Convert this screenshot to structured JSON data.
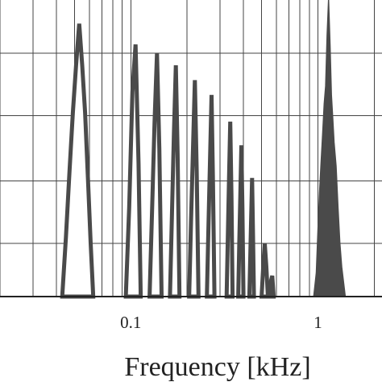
{
  "chart_data": {
    "type": "area",
    "xlabel": "Frequency  [kHz]",
    "x_scale": "log",
    "x_range": [
      0.02,
      2.2
    ],
    "y_range": [
      0,
      1
    ],
    "y_ticks": [
      0.18,
      0.39,
      0.61,
      0.82
    ],
    "grid": true,
    "x_tick_labels": [
      {
        "value": 0.1,
        "label": "0.1"
      },
      {
        "value": 1,
        "label": "1"
      }
    ],
    "series_color": "#4a4a4a",
    "series": [
      {
        "style": "outline",
        "x": [
          0.043,
          0.045,
          0.047,
          0.049,
          0.051,
          0.053,
          0.055,
          0.057,
          0.059,
          0.061,
          0.063
        ],
        "y": [
          0,
          0.2,
          0.42,
          0.62,
          0.78,
          0.92,
          0.78,
          0.62,
          0.4,
          0.18,
          0
        ]
      },
      {
        "style": "outline",
        "x": [
          0.094,
          0.098,
          0.102,
          0.106,
          0.11,
          0.113
        ],
        "y": [
          0,
          0.3,
          0.69,
          0.85,
          0.45,
          0
        ]
      },
      {
        "style": "outline",
        "x": [
          0.126,
          0.13,
          0.134,
          0.138,
          0.142,
          0.146
        ],
        "y": [
          0,
          0.3,
          0.59,
          0.82,
          0.5,
          0
        ]
      },
      {
        "style": "outline",
        "x": [
          0.162,
          0.166,
          0.17,
          0.174,
          0.178,
          0.182
        ],
        "y": [
          0,
          0.28,
          0.55,
          0.78,
          0.48,
          0
        ]
      },
      {
        "style": "outline",
        "x": [
          0.205,
          0.21,
          0.215,
          0.22,
          0.225,
          0.23
        ],
        "y": [
          0,
          0.26,
          0.5,
          0.73,
          0.42,
          0
        ]
      },
      {
        "style": "outline",
        "x": [
          0.255,
          0.26,
          0.265,
          0.27,
          0.275,
          0.28
        ],
        "y": [
          0,
          0.24,
          0.46,
          0.68,
          0.38,
          0
        ]
      },
      {
        "style": "outline",
        "x": [
          0.325,
          0.33,
          0.335,
          0.34,
          0.345,
          0.35
        ],
        "y": [
          0,
          0.2,
          0.4,
          0.59,
          0.34,
          0
        ]
      },
      {
        "style": "outline",
        "x": [
          0.375,
          0.38,
          0.385,
          0.39,
          0.395,
          0.4
        ],
        "y": [
          0,
          0.18,
          0.34,
          0.51,
          0.3,
          0
        ]
      },
      {
        "style": "outline",
        "x": [
          0.43,
          0.435,
          0.44,
          0.445,
          0.45,
          0.455
        ],
        "y": [
          0,
          0.14,
          0.27,
          0.4,
          0.2,
          0
        ]
      },
      {
        "style": "outline",
        "x": [
          0.5,
          0.51,
          0.52,
          0.53,
          0.54
        ],
        "y": [
          0,
          0.1,
          0.18,
          0.1,
          0
        ]
      },
      {
        "style": "outline",
        "x": [
          0.55,
          0.56,
          0.57,
          0.58
        ],
        "y": [
          0,
          0.05,
          0.07,
          0
        ]
      },
      {
        "style": "filled",
        "x": [
          0.95,
          0.98,
          1.0,
          1.02,
          1.04,
          1.06,
          1.08,
          1.1,
          1.12,
          1.14,
          1.16,
          1.18,
          1.2,
          1.22,
          1.25,
          1.28,
          1.31,
          1.34,
          1.37,
          1.4
        ],
        "y": [
          0,
          0.08,
          0.22,
          0.35,
          0.45,
          0.55,
          0.65,
          0.71,
          0.88,
          1.0,
          0.85,
          0.68,
          0.6,
          0.52,
          0.44,
          0.3,
          0.18,
          0.1,
          0.05,
          0
        ]
      }
    ]
  }
}
